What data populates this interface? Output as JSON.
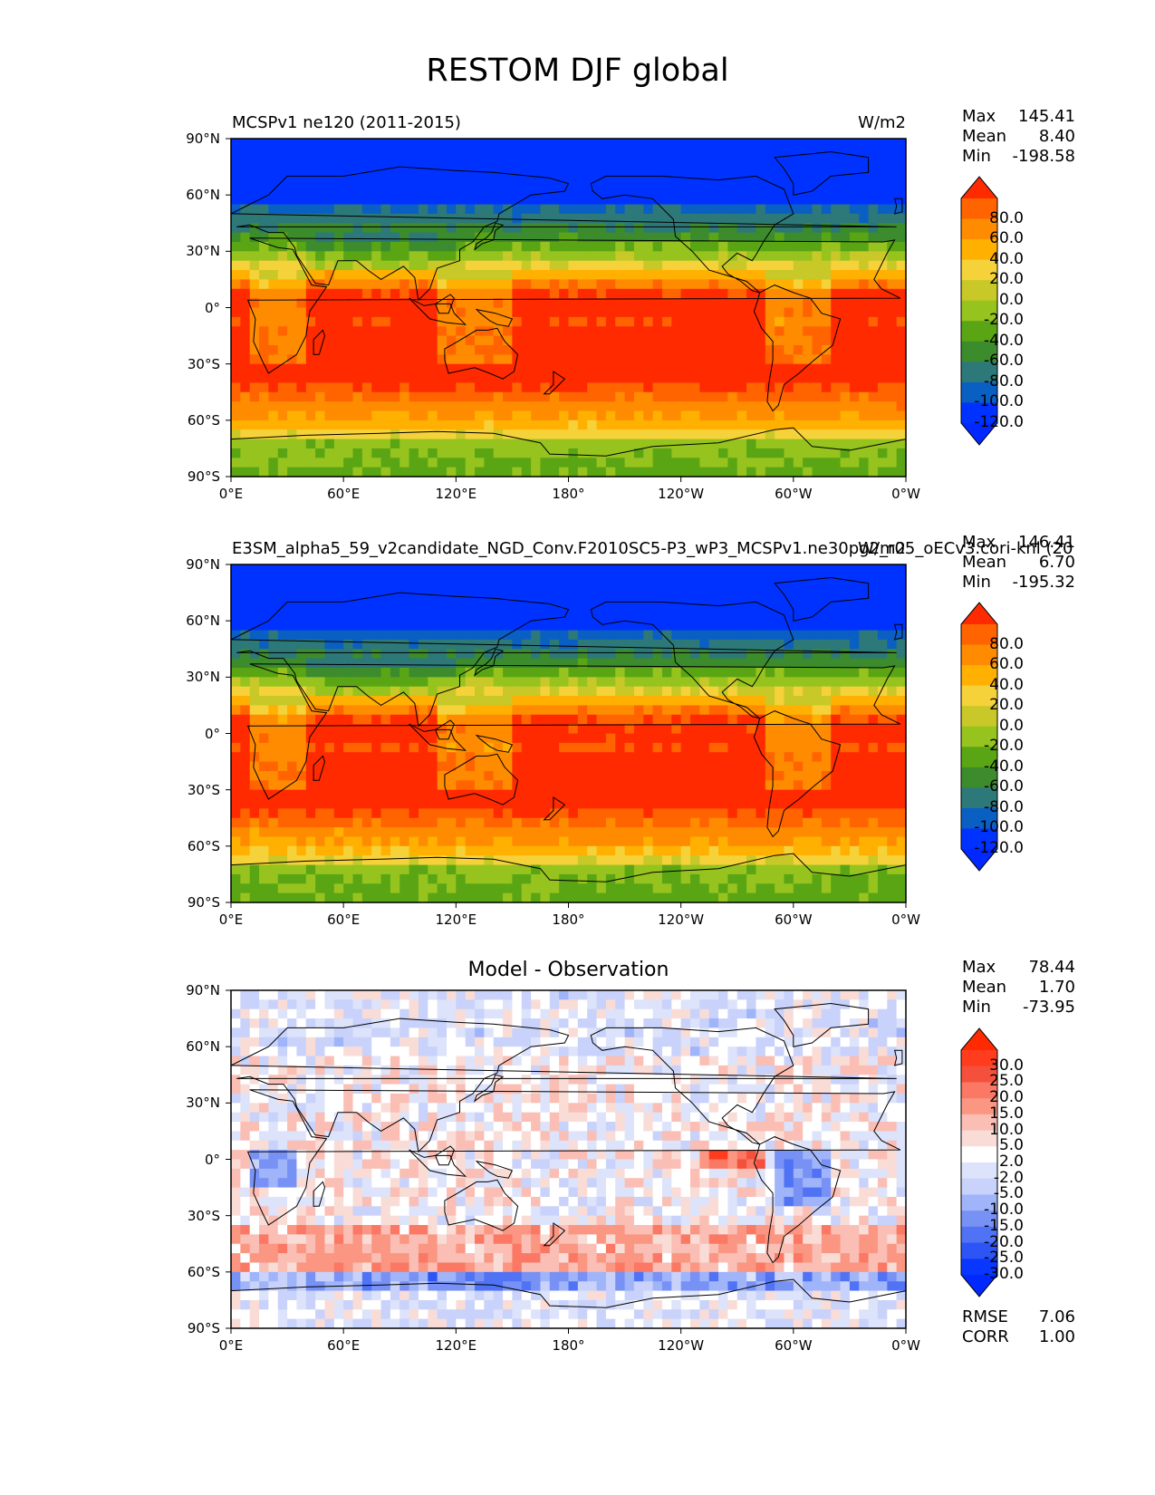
{
  "figure": {
    "title": "RESTOM DJF global"
  },
  "axes": {
    "lat_ticks": [
      "90°N",
      "60°N",
      "30°N",
      "0°",
      "30°S",
      "60°S",
      "90°S"
    ],
    "lon_ticks": [
      "0°E",
      "60°E",
      "120°E",
      "180°",
      "120°W",
      "60°W",
      "0°W"
    ]
  },
  "panels": [
    {
      "title_left": "MCSPv1 ne120 (2011-2015)",
      "title_right": "W/m2",
      "stats": {
        "max_label": "Max",
        "max": "145.41",
        "mean_label": "Mean",
        "mean": "8.40",
        "min_label": "Min",
        "min": "-198.58"
      },
      "colorbar": {
        "labels": [
          "80.0",
          "60.0",
          "40.0",
          "20.0",
          "0.0",
          "-20.0",
          "-40.0",
          "-60.0",
          "-80.0",
          "-100.0",
          "-120.0"
        ],
        "colors": [
          "#ff2a00",
          "#ff6400",
          "#ff8c00",
          "#ffb000",
          "#f5d23a",
          "#c8c828",
          "#96c31e",
          "#5aa514",
          "#3c8c2d",
          "#2d7878",
          "#0a5fc3",
          "#0032ff",
          "#0028ff"
        ]
      }
    },
    {
      "title_left": "E3SM_alpha5_59_v2candidate_NGD_Conv.F2010SC5-P3_wP3_MCSPv1.ne30pg2_r05_oECv3.cori-knl (20",
      "title_right": "W/m2",
      "stats": {
        "max_label": "Max",
        "max": "146.41",
        "mean_label": "Mean",
        "mean": "6.70",
        "min_label": "Min",
        "min": "-195.32"
      },
      "colorbar": {
        "labels": [
          "80.0",
          "60.0",
          "40.0",
          "20.0",
          "0.0",
          "-20.0",
          "-40.0",
          "-60.0",
          "-80.0",
          "-100.0",
          "-120.0"
        ],
        "colors": [
          "#ff2a00",
          "#ff6400",
          "#ff8c00",
          "#ffb000",
          "#f5d23a",
          "#c8c828",
          "#96c31e",
          "#5aa514",
          "#3c8c2d",
          "#2d7878",
          "#0a5fc3",
          "#0032ff",
          "#0028ff"
        ]
      }
    },
    {
      "title_center": "Model - Observation",
      "stats": {
        "max_label": "Max",
        "max": "78.44",
        "mean_label": "Mean",
        "mean": "1.70",
        "min_label": "Min",
        "min": "-73.95",
        "rmse_label": "RMSE",
        "rmse": "7.06",
        "corr_label": "CORR",
        "corr": "1.00"
      },
      "colorbar": {
        "labels": [
          "30.0",
          "25.0",
          "20.0",
          "15.0",
          "10.0",
          "5.0",
          "2.0",
          "-2.0",
          "-5.0",
          "-10.0",
          "-15.0",
          "-20.0",
          "-25.0",
          "-30.0"
        ],
        "colors": [
          "#ff2a00",
          "#ff3c1e",
          "#f5503c",
          "#fa7864",
          "#fa9682",
          "#fabeb4",
          "#fadcd7",
          "#ffffff",
          "#dce3fa",
          "#c8d2fa",
          "#a0b4fa",
          "#7891f5",
          "#5073f5",
          "#2d55f5",
          "#0a37ff",
          "#0028ff"
        ]
      }
    }
  ],
  "colors": {
    "land_outline": "#000000",
    "frame": "#000000"
  }
}
